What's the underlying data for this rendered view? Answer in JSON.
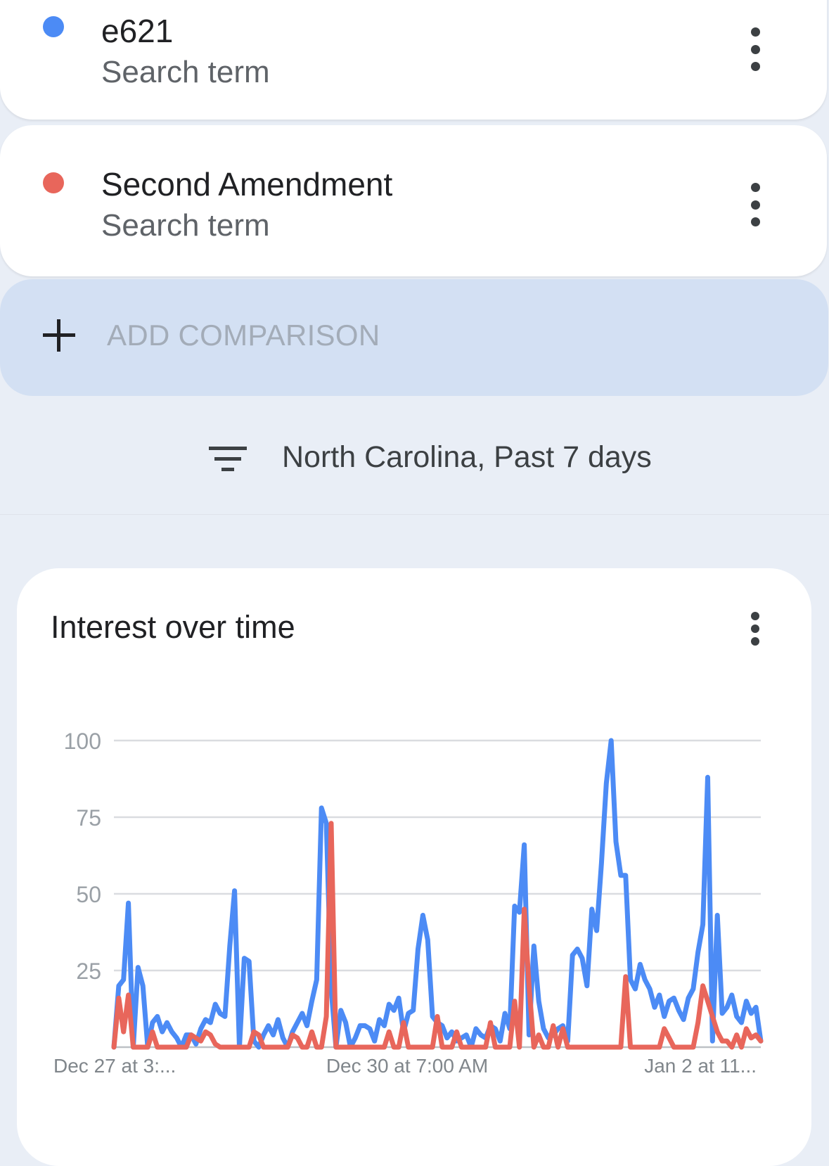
{
  "terms": [
    {
      "name": "e621",
      "sub": "Search term",
      "color": "#4c8bf5"
    },
    {
      "name": "Second Amendment",
      "sub": "Search term",
      "color": "#e8665b"
    }
  ],
  "add_comparison": "ADD COMPARISON",
  "filter": {
    "label": "North Carolina, Past 7 days",
    "icon": "filter-list-icon"
  },
  "chart_card": {
    "title": "Interest over time",
    "menu_icon": "more-vert-icon"
  },
  "chart_data": {
    "type": "line",
    "title": "Interest over time",
    "ylim": [
      0,
      100
    ],
    "yticks": [
      100,
      75,
      50,
      25
    ],
    "grid": true,
    "x_tick_labels": [
      "Dec 27 at 3:...",
      "Dec 30 at 7:00 AM",
      "Jan 2 at 11..."
    ],
    "colors": [
      "#4c8bf5",
      "#e8665b"
    ],
    "series": [
      {
        "name": "e621",
        "values": [
          0,
          20,
          22,
          47,
          0,
          26,
          20,
          0,
          8,
          10,
          5,
          8,
          5,
          3,
          0,
          4,
          4,
          1,
          6,
          9,
          8,
          14,
          11,
          10,
          33,
          51,
          0,
          29,
          28,
          2,
          0,
          4,
          7,
          4,
          9,
          3,
          0,
          5,
          8,
          11,
          7,
          15,
          22,
          78,
          73,
          19,
          0,
          12,
          8,
          0,
          3,
          7,
          7,
          6,
          2,
          9,
          7,
          14,
          12,
          16,
          5,
          11,
          12,
          32,
          43,
          35,
          10,
          8,
          7,
          3,
          5,
          2,
          3,
          4,
          0,
          6,
          4,
          3,
          7,
          6,
          2,
          11,
          6,
          46,
          44,
          66,
          4,
          33,
          15,
          6,
          3,
          4,
          6,
          7,
          2,
          30,
          32,
          29,
          20,
          45,
          38,
          60,
          86,
          100,
          67,
          56,
          56,
          22,
          19,
          27,
          22,
          19,
          13,
          17,
          10,
          15,
          16,
          12,
          9,
          16,
          19,
          31,
          40,
          88,
          2,
          43,
          11,
          13,
          17,
          10,
          8,
          15,
          11,
          13,
          2
        ]
      },
      {
        "name": "Second Amendment",
        "values": [
          0,
          16,
          5,
          17,
          0,
          0,
          0,
          0,
          5,
          0,
          0,
          0,
          0,
          0,
          0,
          0,
          4,
          3,
          2,
          5,
          4,
          1,
          0,
          0,
          0,
          0,
          0,
          0,
          0,
          5,
          4,
          0,
          0,
          0,
          0,
          0,
          0,
          4,
          3,
          0,
          0,
          5,
          0,
          0,
          10,
          73,
          0,
          0,
          0,
          0,
          0,
          0,
          0,
          0,
          0,
          0,
          0,
          5,
          0,
          0,
          8,
          0,
          0,
          0,
          0,
          0,
          0,
          10,
          0,
          0,
          0,
          5,
          0,
          0,
          0,
          0,
          0,
          0,
          8,
          0,
          0,
          0,
          0,
          15,
          0,
          45,
          20,
          0,
          4,
          0,
          0,
          7,
          0,
          6,
          0,
          0,
          0,
          0,
          0,
          0,
          0,
          0,
          0,
          0,
          0,
          0,
          23,
          0,
          0,
          0,
          0,
          0,
          0,
          0,
          6,
          3,
          0,
          0,
          0,
          0,
          0,
          8,
          20,
          15,
          10,
          5,
          2,
          2,
          0,
          4,
          0,
          6,
          3,
          4,
          2
        ]
      }
    ]
  }
}
